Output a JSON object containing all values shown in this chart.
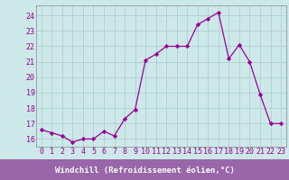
{
  "x": [
    0,
    1,
    2,
    3,
    4,
    5,
    6,
    7,
    8,
    9,
    10,
    11,
    12,
    13,
    14,
    15,
    16,
    17,
    18,
    19,
    20,
    21,
    22,
    23
  ],
  "y": [
    16.6,
    16.4,
    16.2,
    15.8,
    16.0,
    16.0,
    16.5,
    16.2,
    17.3,
    17.9,
    21.1,
    21.5,
    22.0,
    22.0,
    22.0,
    23.4,
    23.8,
    24.2,
    21.2,
    22.1,
    21.0,
    18.9,
    17.0,
    17.0
  ],
  "line_color": "#990099",
  "marker": "D",
  "markersize": 2.2,
  "linewidth": 0.9,
  "bg_color": "#cce8e8",
  "grid_color": "#aacccc",
  "xlabel": "Windchill (Refroidissement éolien,°C)",
  "xlabel_fontsize": 6.5,
  "xlabel_color": "#990099",
  "xlabel_bg": "#9966aa",
  "ytick_labels": [
    "16",
    "17",
    "18",
    "19",
    "20",
    "21",
    "22",
    "23",
    "24"
  ],
  "ytick_values": [
    16,
    17,
    18,
    19,
    20,
    21,
    22,
    23,
    24
  ],
  "xtick_labels": [
    "0",
    "1",
    "2",
    "3",
    "4",
    "5",
    "6",
    "7",
    "8",
    "9",
    "10",
    "11",
    "12",
    "13",
    "14",
    "15",
    "16",
    "17",
    "18",
    "19",
    "20",
    "21",
    "22",
    "23"
  ],
  "ylim": [
    15.5,
    24.65
  ],
  "xlim": [
    -0.5,
    23.5
  ],
  "tick_fontsize": 6.0,
  "tick_color": "#990099",
  "spine_color": "#888888"
}
